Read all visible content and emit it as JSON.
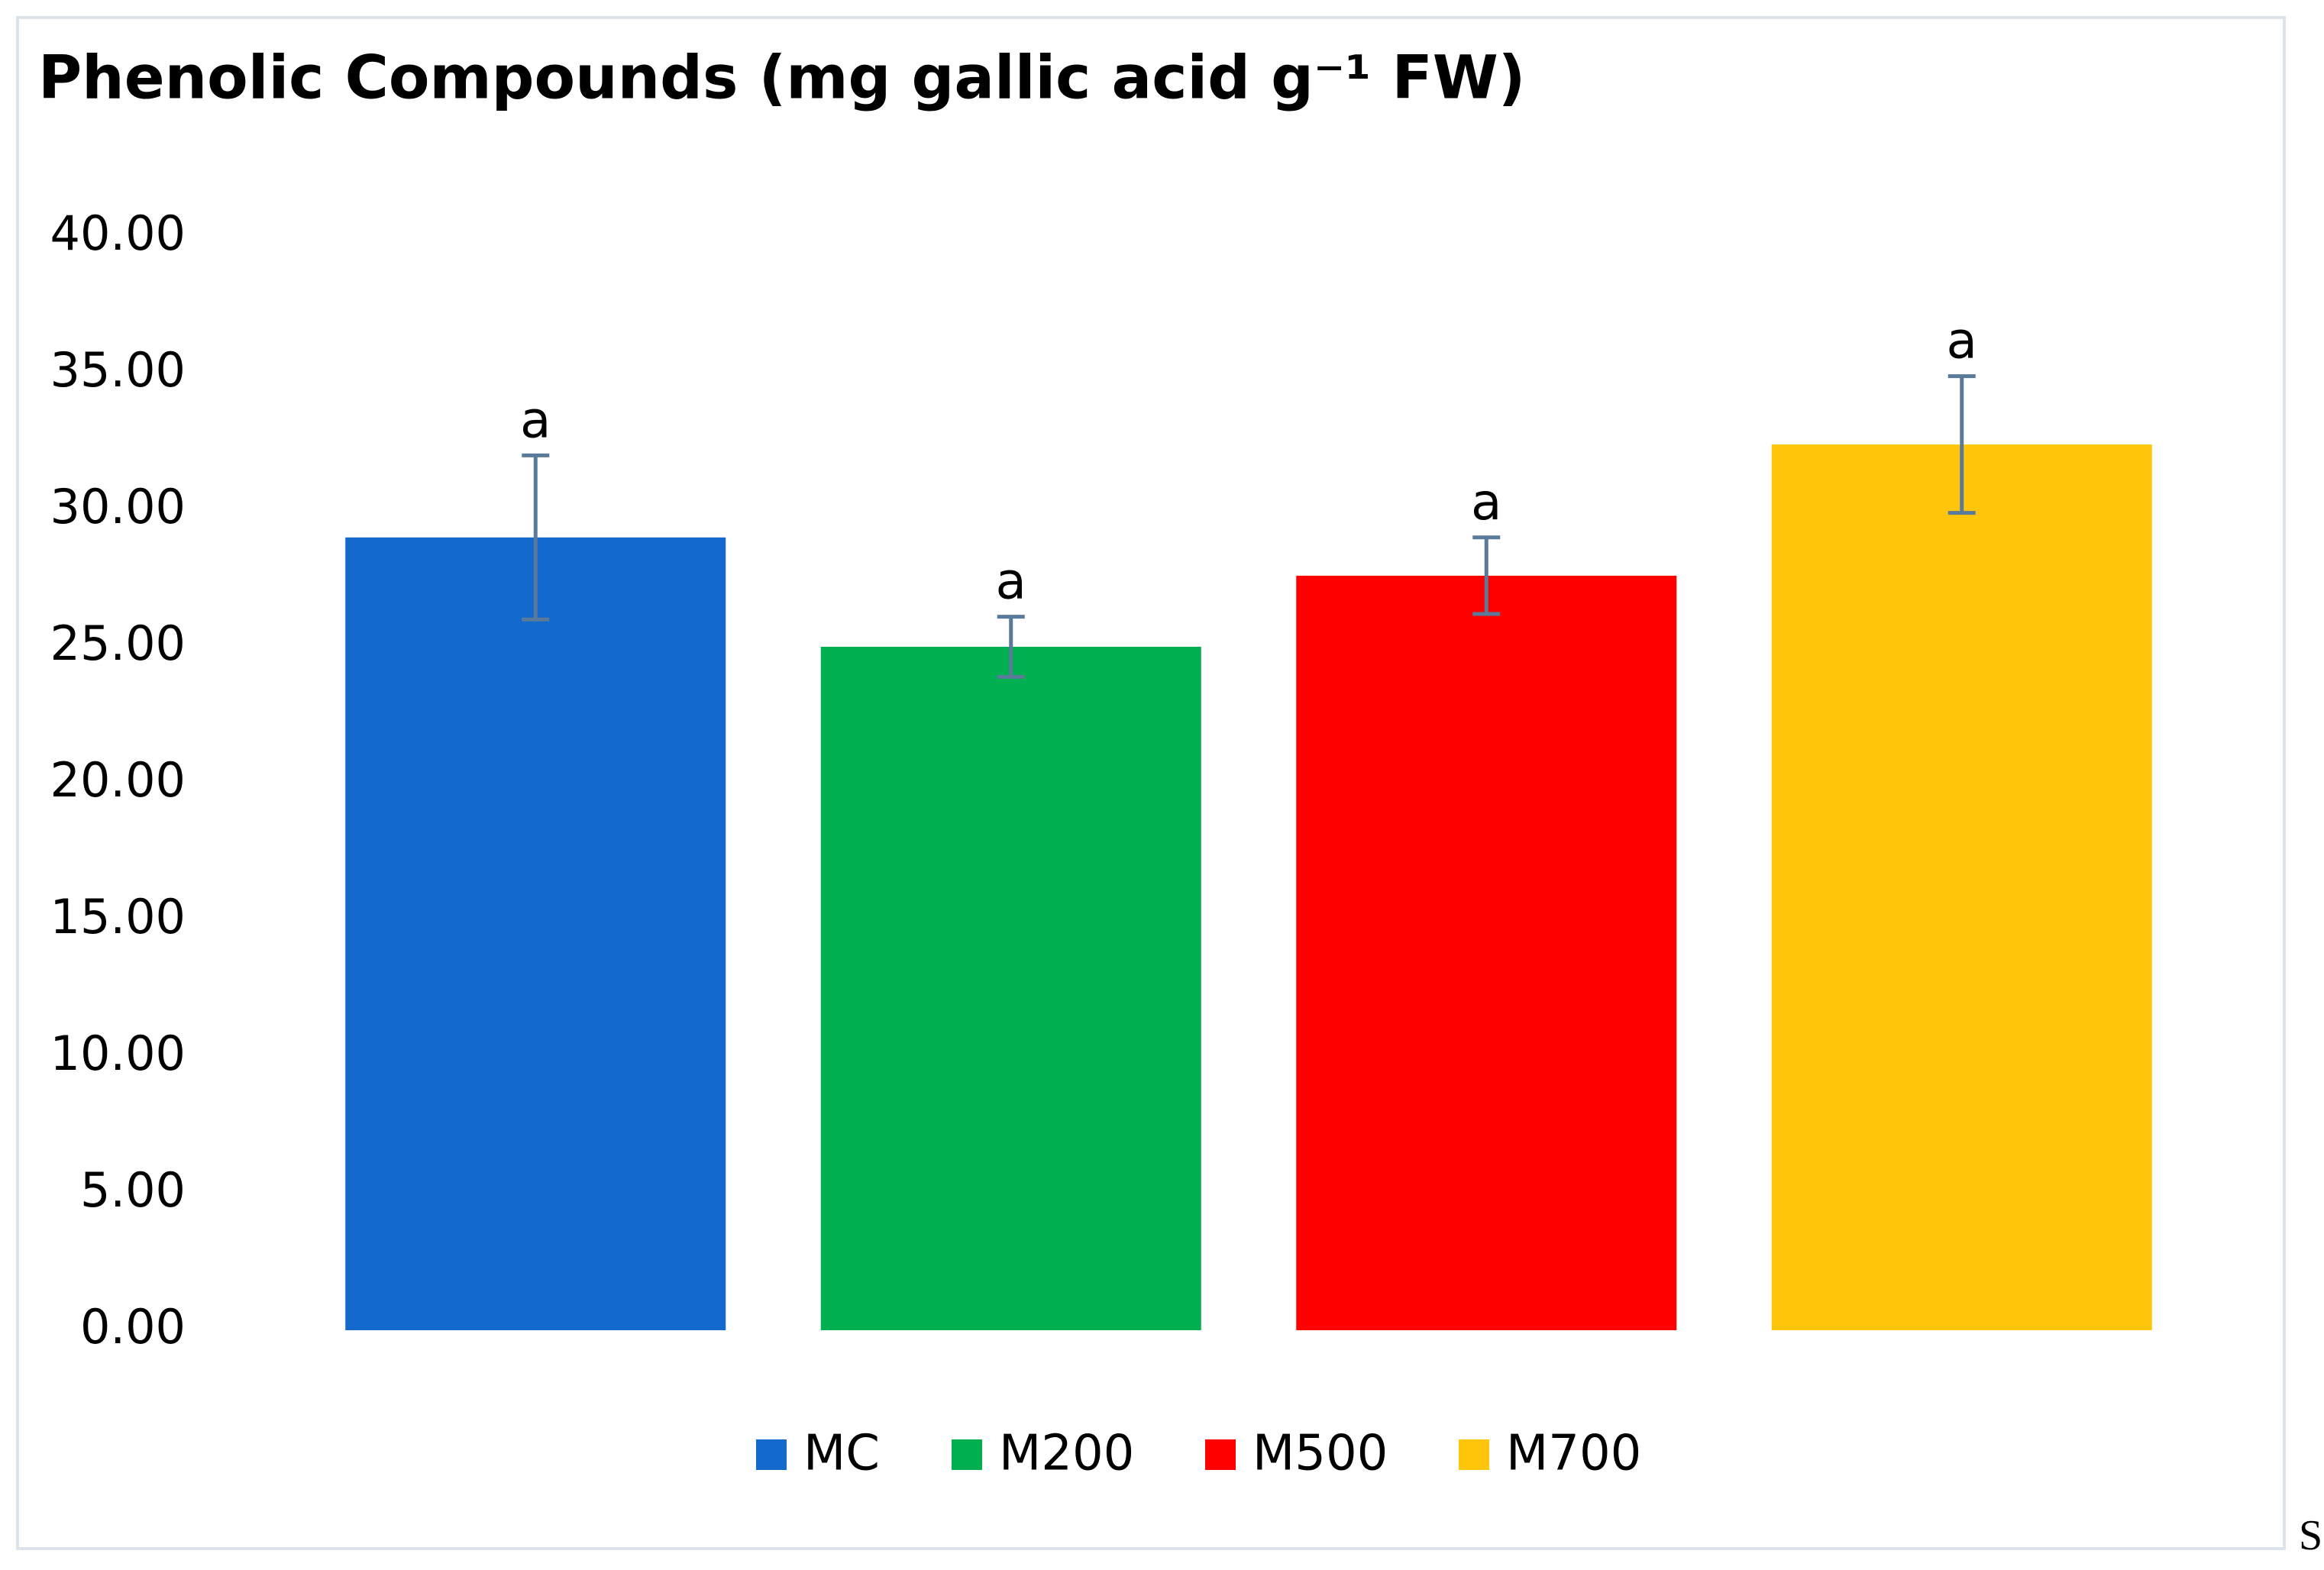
{
  "chart_data": {
    "type": "bar",
    "title": "Phenolic Compounds (mg gallic acid g⁻¹ FW)",
    "series": [
      {
        "name": "MC",
        "color": "#1469cc",
        "values": [
          29.0
        ],
        "errors": [
          3.0
        ],
        "letters": [
          "a"
        ]
      },
      {
        "name": "M200",
        "color": "#00b050",
        "values": [
          25.0
        ],
        "errors": [
          1.1
        ],
        "letters": [
          "a"
        ]
      },
      {
        "name": "M500",
        "color": "#ff0000",
        "values": [
          27.6
        ],
        "errors": [
          1.4
        ],
        "letters": [
          "a"
        ]
      },
      {
        "name": "M700",
        "color": "#ffc50a",
        "values": [
          32.4
        ],
        "errors": [
          2.5
        ],
        "letters": [
          "a"
        ]
      }
    ],
    "ylim": [
      0,
      40
    ],
    "yticks": [
      {
        "value": 0,
        "label": "0.00"
      },
      {
        "value": 5,
        "label": "5.00"
      },
      {
        "value": 10,
        "label": "10.00"
      },
      {
        "value": 15,
        "label": "15.00"
      },
      {
        "value": 20,
        "label": "20.00"
      },
      {
        "value": 25,
        "label": "25.00"
      },
      {
        "value": 30,
        "label": "30.00"
      },
      {
        "value": 35,
        "label": "35.00"
      },
      {
        "value": 40,
        "label": "40.00"
      }
    ],
    "error_color": "#5a7a99",
    "legend": "bottom",
    "corner_text": "S"
  }
}
